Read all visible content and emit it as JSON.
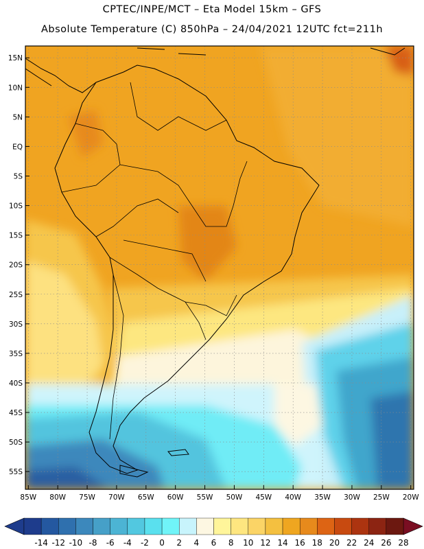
{
  "header": {
    "line1": "CPTEC/INPE/MCT –  Eta Model 15km – GFS",
    "line2": "Absolute Temperature (C) 850hPa – 24/04/2021 12UTC fct=211h"
  },
  "axes": {
    "lat_labels": [
      "15N",
      "10N",
      "5N",
      "EQ",
      "5S",
      "10S",
      "15S",
      "20S",
      "25S",
      "30S",
      "35S",
      "40S",
      "45S",
      "50S",
      "55S"
    ],
    "lat_values": [
      15,
      10,
      5,
      0,
      -5,
      -10,
      -15,
      -20,
      -25,
      -30,
      -35,
      -40,
      -45,
      -50,
      -55
    ],
    "lon_labels": [
      "85W",
      "80W",
      "75W",
      "70W",
      "65W",
      "60W",
      "55W",
      "50W",
      "45W",
      "40W",
      "35W",
      "30W",
      "25W",
      "20W"
    ],
    "lon_values": [
      -85,
      -80,
      -75,
      -70,
      -65,
      -60,
      -55,
      -50,
      -45,
      -40,
      -35,
      -30,
      -25,
      -20
    ],
    "lat_range": [
      -58,
      17
    ],
    "lon_range": [
      -85.5,
      -19.5
    ]
  },
  "colorbar": {
    "labels": [
      "-14",
      "-12",
      "-10",
      "-8",
      "-6",
      "-4",
      "-2",
      "0",
      "2",
      "4",
      "6",
      "8",
      "10",
      "12",
      "14",
      "16",
      "18",
      "20",
      "22",
      "24",
      "26",
      "28"
    ],
    "colors": [
      "#1e3c8c",
      "#2458a0",
      "#2f70ae",
      "#3c88bc",
      "#46a0c8",
      "#4cb4d4",
      "#52c8e0",
      "#5ae0ee",
      "#70f4f8",
      "#c8f4fc",
      "#fdf7e2",
      "#fff59a",
      "#fee680",
      "#fbd466",
      "#f4c040",
      "#efa620",
      "#e78a1c",
      "#dd6414",
      "#c84a10",
      "#ac3410",
      "#8c2412",
      "#6c1810"
    ],
    "under_color": "#1e3c8c",
    "over_color": "#7a0e22"
  }
}
